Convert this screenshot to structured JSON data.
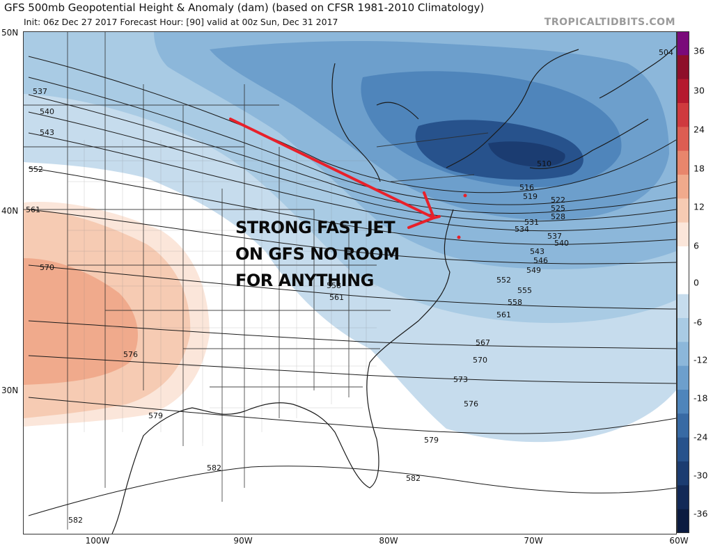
{
  "header": {
    "title": "GFS 500mb Geopotential Height & Anomaly (dam) (based on CFSR 1981-2010 Climatology)",
    "subtitle": "Init: 06z Dec 27 2017   Forecast Hour: [90]   valid at 00z Sun, Dec 31 2017",
    "brand": "TROPICALTIDBITS.COM"
  },
  "axes": {
    "lat_labels": [
      "50N",
      "40N",
      "30N"
    ],
    "lon_labels": [
      "100W",
      "90W",
      "80W",
      "70W",
      "60W"
    ]
  },
  "colorbar": {
    "ticks": [
      "36",
      "30",
      "24",
      "18",
      "12",
      "6",
      "0",
      "-6",
      "-12",
      "-18",
      "-24",
      "-30",
      "-36"
    ],
    "colors": [
      "#7a0a7a",
      "#8e0f2a",
      "#b5192e",
      "#cf3a3e",
      "#dd5d52",
      "#e8866c",
      "#f0aa8c",
      "#f6cbb3",
      "#fbe6da",
      "#ffffff",
      "#ffffff",
      "#c6dced",
      "#a9cbe4",
      "#8cb7da",
      "#6d9fcc",
      "#4f85bb",
      "#386aa4",
      "#27528c",
      "#1b3c71",
      "#122957",
      "#0b1b40"
    ]
  },
  "contour_labels": [
    "504",
    "510",
    "516",
    "519",
    "522",
    "525",
    "528",
    "531",
    "534",
    "537",
    "540",
    "543",
    "546",
    "549",
    "552",
    "555",
    "558",
    "561",
    "567",
    "570",
    "573",
    "576",
    "579",
    "582",
    "537",
    "540",
    "543",
    "552",
    "561",
    "570",
    "576",
    "579",
    "582",
    "582",
    "558",
    "561"
  ],
  "annotation": {
    "lines": [
      "STRONG FAST JET",
      "ON GFS NO ROOM",
      "FOR ANYTHING"
    ],
    "arrow_color": "#e8202a"
  }
}
